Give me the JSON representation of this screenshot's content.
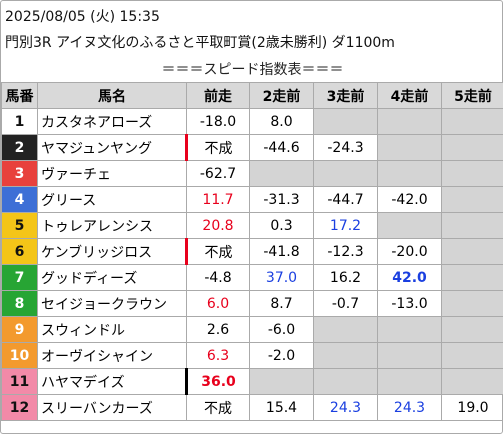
{
  "header": {
    "datetime": "2025/08/05 (火) 15:35",
    "race": "門別3R アイヌ文化のふるさと平取町賞(2歳未勝利) ダ1100m"
  },
  "table": {
    "caption": "＝＝＝スピード指数表＝＝＝",
    "columns": [
      "馬番",
      "馬名",
      "前走",
      "2走前",
      "3走前",
      "4走前",
      "5走前"
    ],
    "rows": [
      {
        "no": 1,
        "frame": "#ffffff",
        "name": "カスタネアローズ",
        "cells": [
          "-18.0",
          "8.0",
          null,
          null,
          null
        ]
      },
      {
        "no": 2,
        "frame": "#222222",
        "name": "ヤマジュンヤング",
        "cells": [
          {
            "text": "不成",
            "border": "#e8001c"
          },
          "-44.6",
          "-24.3",
          null,
          null
        ]
      },
      {
        "no": 3,
        "frame": "#e8413c",
        "name": "ヴァーチェ",
        "cells": [
          "-62.7",
          null,
          null,
          null,
          null
        ]
      },
      {
        "no": 4,
        "frame": "#3d6fd6",
        "name": "グリース",
        "cells": [
          {
            "text": "11.7",
            "color": "#e8001c"
          },
          "-31.3",
          "-44.7",
          "-42.0",
          null
        ]
      },
      {
        "no": 5,
        "frame": "#f4c518",
        "name": "トゥレアレンシス",
        "cells": [
          {
            "text": "20.8",
            "color": "#e8001c"
          },
          "0.3",
          {
            "text": "17.2",
            "color": "#1a3fe0"
          },
          null,
          null
        ]
      },
      {
        "no": 6,
        "frame": "#f4c518",
        "name": "ケンブリッジロス",
        "cells": [
          {
            "text": "不成",
            "border": "#e8001c"
          },
          "-41.8",
          "-12.3",
          "-20.0",
          null
        ]
      },
      {
        "no": 7,
        "frame": "#27a534",
        "name": "グッドディーズ",
        "cells": [
          "-4.8",
          {
            "text": "37.0",
            "color": "#1a3fe0"
          },
          "16.2",
          {
            "text": "42.0",
            "color": "#1a3fe0",
            "bold": true
          },
          null
        ]
      },
      {
        "no": 8,
        "frame": "#27a534",
        "name": "セイジョークラウン",
        "cells": [
          {
            "text": "6.0",
            "color": "#e8001c"
          },
          "8.7",
          "-0.7",
          "-13.0",
          null
        ]
      },
      {
        "no": 9,
        "frame": "#f39a2e",
        "name": "スウィンドル",
        "cells": [
          "2.6",
          "-6.0",
          null,
          null,
          null
        ]
      },
      {
        "no": 10,
        "frame": "#f39a2e",
        "name": "オーヴイシャイン",
        "cells": [
          {
            "text": "6.3",
            "color": "#e8001c"
          },
          "-2.0",
          null,
          null,
          null
        ]
      },
      {
        "no": 11,
        "frame": "#f28aa8",
        "name": "ハヤマデイズ",
        "cells": [
          {
            "text": "36.0",
            "color": "#e8001c",
            "bold": true,
            "border": "#000000"
          },
          null,
          null,
          null,
          null
        ]
      },
      {
        "no": 12,
        "frame": "#f28aa8",
        "name": "スリーバンカーズ",
        "cells": [
          "不成",
          "15.4",
          {
            "text": "24.3",
            "color": "#1a3fe0"
          },
          {
            "text": "24.3",
            "color": "#1a3fe0"
          },
          "19.0"
        ]
      }
    ]
  }
}
